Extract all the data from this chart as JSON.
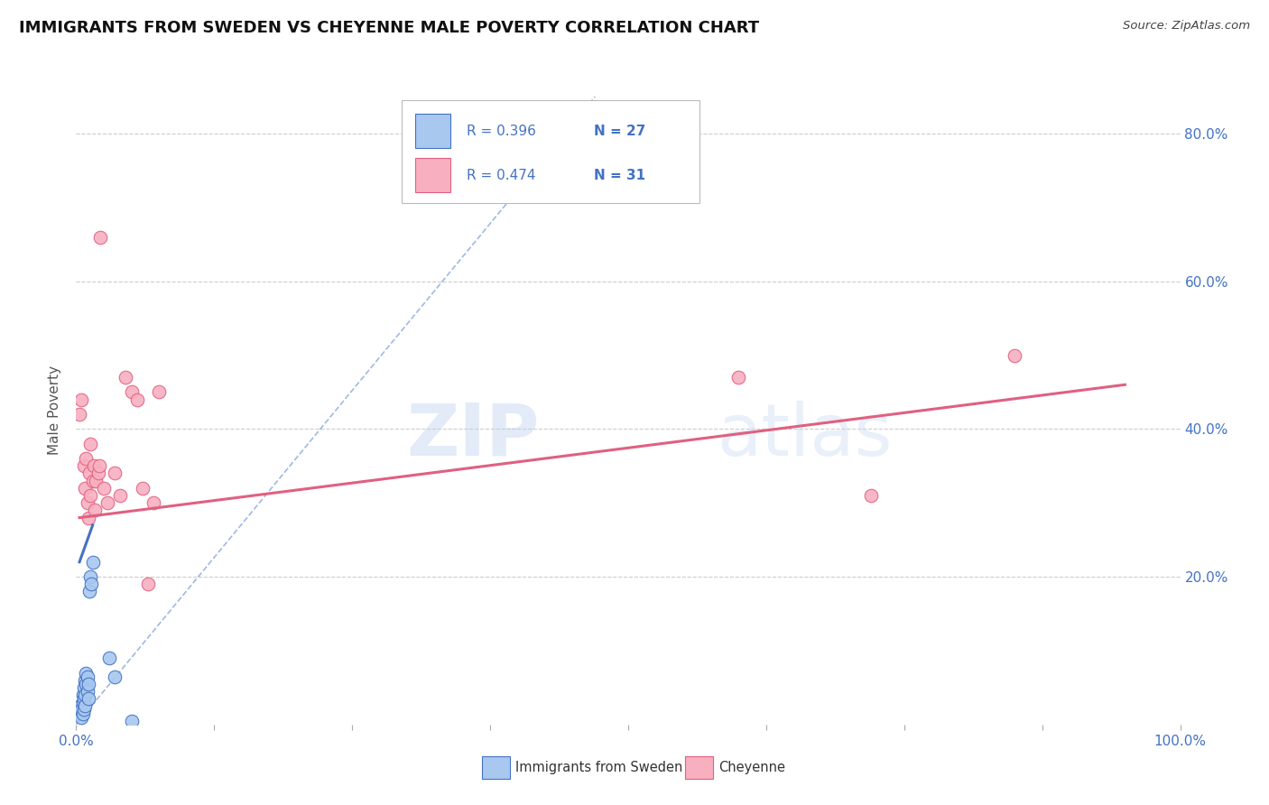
{
  "title": "IMMIGRANTS FROM SWEDEN VS CHEYENNE MALE POVERTY CORRELATION CHART",
  "source": "Source: ZipAtlas.com",
  "ylabel": "Male Poverty",
  "watermark": "ZIPatlas",
  "legend_r1": "R = 0.396",
  "legend_n1": "N = 27",
  "legend_r2": "R = 0.474",
  "legend_n2": "N = 31",
  "legend_label1": "Immigrants from Sweden",
  "legend_label2": "Cheyenne",
  "xlim": [
    0.0,
    1.0
  ],
  "ylim": [
    0.0,
    0.85
  ],
  "color_blue": "#A8C8F0",
  "color_pink": "#F8B0C0",
  "line_blue": "#4472C4",
  "line_pink": "#E06080",
  "background": "#FFFFFF",
  "sweden_points": [
    [
      0.003,
      0.015
    ],
    [
      0.004,
      0.02
    ],
    [
      0.004,
      0.025
    ],
    [
      0.005,
      0.01
    ],
    [
      0.005,
      0.02
    ],
    [
      0.006,
      0.015
    ],
    [
      0.006,
      0.03
    ],
    [
      0.006,
      0.04
    ],
    [
      0.007,
      0.02
    ],
    [
      0.007,
      0.035
    ],
    [
      0.007,
      0.05
    ],
    [
      0.008,
      0.025
    ],
    [
      0.008,
      0.04
    ],
    [
      0.008,
      0.06
    ],
    [
      0.009,
      0.055
    ],
    [
      0.009,
      0.07
    ],
    [
      0.01,
      0.045
    ],
    [
      0.01,
      0.065
    ],
    [
      0.011,
      0.035
    ],
    [
      0.011,
      0.055
    ],
    [
      0.012,
      0.18
    ],
    [
      0.013,
      0.2
    ],
    [
      0.014,
      0.19
    ],
    [
      0.015,
      0.22
    ],
    [
      0.03,
      0.09
    ],
    [
      0.035,
      0.065
    ],
    [
      0.05,
      0.005
    ]
  ],
  "cheyenne_points": [
    [
      0.003,
      0.42
    ],
    [
      0.005,
      0.44
    ],
    [
      0.007,
      0.35
    ],
    [
      0.008,
      0.32
    ],
    [
      0.009,
      0.36
    ],
    [
      0.01,
      0.3
    ],
    [
      0.011,
      0.28
    ],
    [
      0.012,
      0.34
    ],
    [
      0.013,
      0.31
    ],
    [
      0.013,
      0.38
    ],
    [
      0.015,
      0.33
    ],
    [
      0.016,
      0.35
    ],
    [
      0.017,
      0.29
    ],
    [
      0.018,
      0.33
    ],
    [
      0.02,
      0.34
    ],
    [
      0.021,
      0.35
    ],
    [
      0.022,
      0.66
    ],
    [
      0.025,
      0.32
    ],
    [
      0.028,
      0.3
    ],
    [
      0.035,
      0.34
    ],
    [
      0.04,
      0.31
    ],
    [
      0.045,
      0.47
    ],
    [
      0.05,
      0.45
    ],
    [
      0.055,
      0.44
    ],
    [
      0.06,
      0.32
    ],
    [
      0.065,
      0.19
    ],
    [
      0.07,
      0.3
    ],
    [
      0.075,
      0.45
    ],
    [
      0.6,
      0.47
    ],
    [
      0.72,
      0.31
    ],
    [
      0.85,
      0.5
    ]
  ],
  "sweden_line": [
    0.003,
    0.22,
    0.015,
    0.27
  ],
  "cheyenne_line": [
    0.003,
    0.28,
    0.95,
    0.46
  ],
  "diag_line": [
    0.0,
    0.0,
    0.47,
    0.85
  ],
  "grid_yticks": [
    0.2,
    0.4,
    0.6,
    0.8
  ],
  "xtick_positions": [
    0.0,
    0.125,
    0.25,
    0.375,
    0.5,
    0.625,
    0.75,
    0.875,
    1.0
  ],
  "ytick_right": [
    0.2,
    0.4,
    0.6,
    0.8
  ],
  "ytick_right_labels": [
    "20.0%",
    "40.0%",
    "60.0%",
    "80.0%"
  ]
}
